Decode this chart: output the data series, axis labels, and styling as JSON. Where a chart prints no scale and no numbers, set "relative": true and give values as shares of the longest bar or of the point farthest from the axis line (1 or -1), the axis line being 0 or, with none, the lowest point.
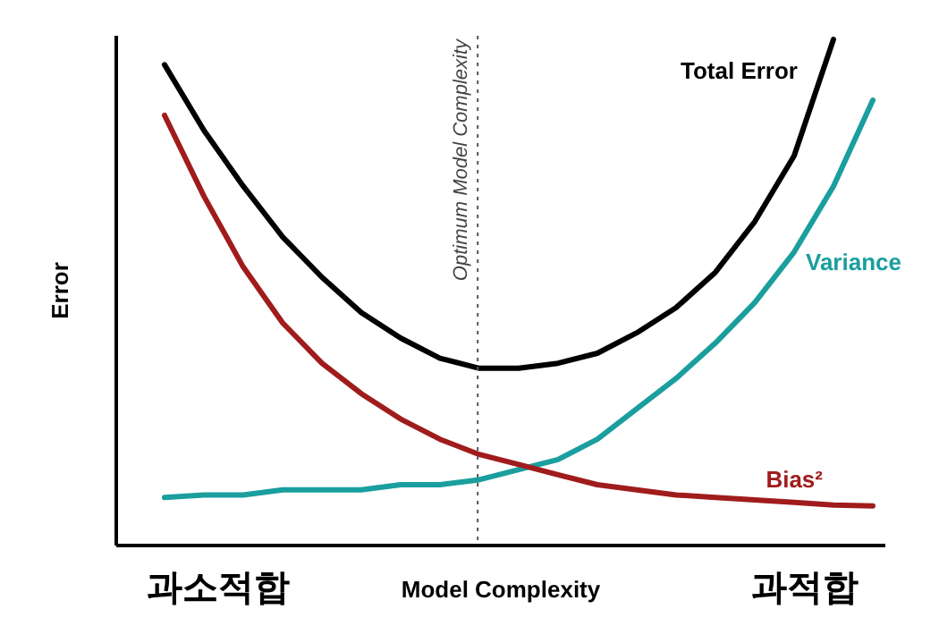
{
  "chart_data": {
    "type": "line",
    "relative": true,
    "xlabel": "Model Complexity",
    "ylabel": "Error",
    "line_style": "solid",
    "categories": [
      null,
      null,
      null,
      null,
      null,
      null,
      null,
      null,
      null,
      null,
      null,
      null,
      null,
      null,
      null,
      null,
      null,
      null,
      null
    ],
    "series": [
      {
        "name": "Total Error",
        "color": "#000000",
        "values": [
          0.95,
          0.82,
          0.71,
          0.61,
          0.53,
          0.46,
          0.41,
          0.37,
          0.35,
          0.35,
          0.36,
          0.38,
          0.42,
          0.47,
          0.54,
          0.64,
          0.77,
          1.0,
          null
        ]
      },
      {
        "name": "Variance",
        "color": "#1a9e9e",
        "values": [
          0.095,
          0.1,
          0.1,
          0.11,
          0.11,
          0.11,
          0.12,
          0.12,
          0.13,
          0.15,
          0.17,
          0.21,
          0.27,
          0.33,
          0.4,
          0.48,
          0.58,
          0.71,
          0.88
        ]
      },
      {
        "name": "Bias²",
        "color": "#a01c1c",
        "values": [
          0.85,
          0.69,
          0.55,
          0.44,
          0.36,
          0.3,
          0.25,
          0.21,
          0.18,
          0.16,
          0.14,
          0.12,
          0.11,
          0.1,
          0.095,
          0.09,
          0.085,
          0.08,
          0.078
        ]
      }
    ],
    "annotations": [
      "과소적합",
      "과적합",
      "Optimum Model Complexity"
    ]
  }
}
